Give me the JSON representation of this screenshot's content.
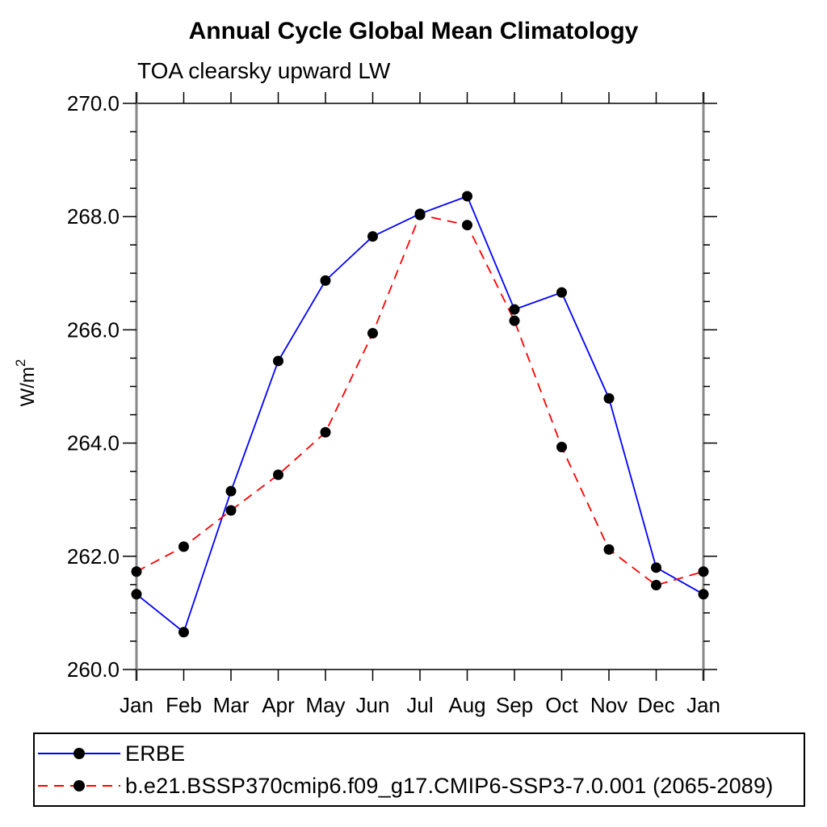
{
  "chart_data": {
    "type": "line",
    "title": "Annual Cycle Global Mean Climatology",
    "subtitle": "TOA clearsky upward LW",
    "xlabel": "",
    "ylabel": "W/m²",
    "categories": [
      "Jan",
      "Feb",
      "Mar",
      "Apr",
      "May",
      "Jun",
      "Jul",
      "Aug",
      "Sep",
      "Oct",
      "Nov",
      "Dec",
      "Jan"
    ],
    "ylim": [
      260.0,
      270.0
    ],
    "ytick_major": [
      260,
      262,
      264,
      266,
      268,
      270
    ],
    "ytick_labels": [
      "260.0",
      "262.0",
      "264.0",
      "266.0",
      "268.0",
      "270.0"
    ],
    "ytick_minor_step": 0.5,
    "grid": false,
    "legend_position": "bottom-left-box",
    "marker": "filled-circle",
    "marker_color": "#000000",
    "series": [
      {
        "name": "ERBE",
        "color": "#0000ff",
        "style": "solid",
        "values": [
          261.33,
          260.66,
          263.15,
          265.45,
          266.87,
          267.65,
          268.05,
          268.36,
          266.36,
          266.66,
          264.79,
          261.8,
          261.33
        ]
      },
      {
        "name": "b.e21.BSSP370cmip6.f09_g17.CMIP6-SSP3-7.0.001 (2065-2089)",
        "color": "#ff0000",
        "style": "dashed",
        "values": [
          261.73,
          262.17,
          262.81,
          263.44,
          264.19,
          265.94,
          268.03,
          267.85,
          266.16,
          263.93,
          262.12,
          261.49,
          261.73
        ]
      }
    ]
  }
}
